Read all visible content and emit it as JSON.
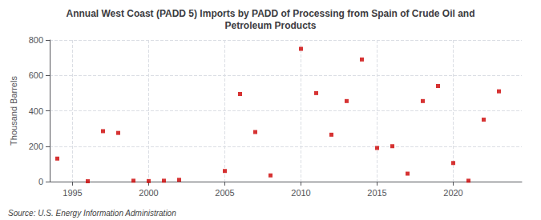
{
  "chart_data": {
    "type": "scatter",
    "title": "Annual West Coast (PADD 5) Imports by PADD of Processing from Spain of Crude Oil and\nPetroleum Products",
    "ylabel": "Thousand Barrels",
    "annotation": "Source: U.S. Energy Information Administration",
    "x": [
      1994,
      1996,
      1997,
      1998,
      1999,
      2000,
      2001,
      2002,
      2005,
      2006,
      2007,
      2008,
      2010,
      2011,
      2012,
      2013,
      2014,
      2015,
      2016,
      2017,
      2018,
      2019,
      2020,
      2021,
      2022,
      2023
    ],
    "values": [
      130,
      2,
      285,
      275,
      5,
      3,
      5,
      10,
      60,
      495,
      280,
      35,
      750,
      500,
      265,
      455,
      690,
      190,
      200,
      45,
      455,
      540,
      105,
      5,
      350,
      510
    ],
    "color": "#cc0000",
    "marker": "square",
    "xlim": [
      1993.5,
      2024.5
    ],
    "ylim": [
      0,
      800
    ],
    "xticks": [
      1995,
      2000,
      2005,
      2010,
      2015,
      2020
    ],
    "yticks": [
      0,
      200,
      400,
      600,
      800
    ],
    "grid": true
  }
}
